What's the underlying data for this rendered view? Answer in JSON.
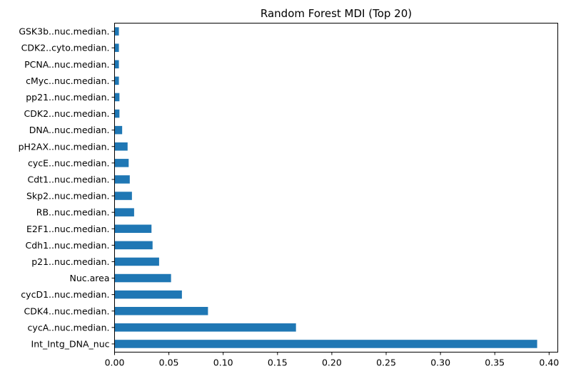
{
  "chart_data": {
    "type": "bar",
    "orientation": "horizontal",
    "title": "Random Forest MDI (Top 20)",
    "xlabel": "",
    "ylabel": "",
    "xlim": [
      0,
      0.408
    ],
    "xticks": [
      0.0,
      0.05,
      0.1,
      0.15,
      0.2,
      0.25,
      0.3,
      0.35,
      0.4
    ],
    "xtick_labels": [
      "0.00",
      "0.05",
      "0.10",
      "0.15",
      "0.20",
      "0.25",
      "0.30",
      "0.35",
      "0.40"
    ],
    "grid": false,
    "bar_color": "#1f77b4",
    "categories": [
      "Int_Intg_DNA_nuc",
      "cycA..nuc.median.",
      "CDK4..nuc.median.",
      "cycD1..nuc.median.",
      "Nuc.area",
      "p21..nuc.median.",
      "Cdh1..nuc.median.",
      "E2F1..nuc.median.",
      "RB..nuc.median.",
      "Skp2..nuc.median.",
      "Cdt1..nuc.median.",
      "cycE..nuc.median.",
      "pH2AX..nuc.median.",
      "DNA..nuc.median.",
      "CDK2..nuc.median.",
      "pp21..nuc.median.",
      "cMyc..nuc.median.",
      "PCNA..nuc.median.",
      "CDK2..cyto.median.",
      "GSK3b..nuc.median."
    ],
    "values": [
      0.389,
      0.167,
      0.086,
      0.062,
      0.052,
      0.041,
      0.035,
      0.034,
      0.018,
      0.016,
      0.014,
      0.013,
      0.012,
      0.007,
      0.0045,
      0.0045,
      0.004,
      0.004,
      0.004,
      0.004
    ]
  }
}
